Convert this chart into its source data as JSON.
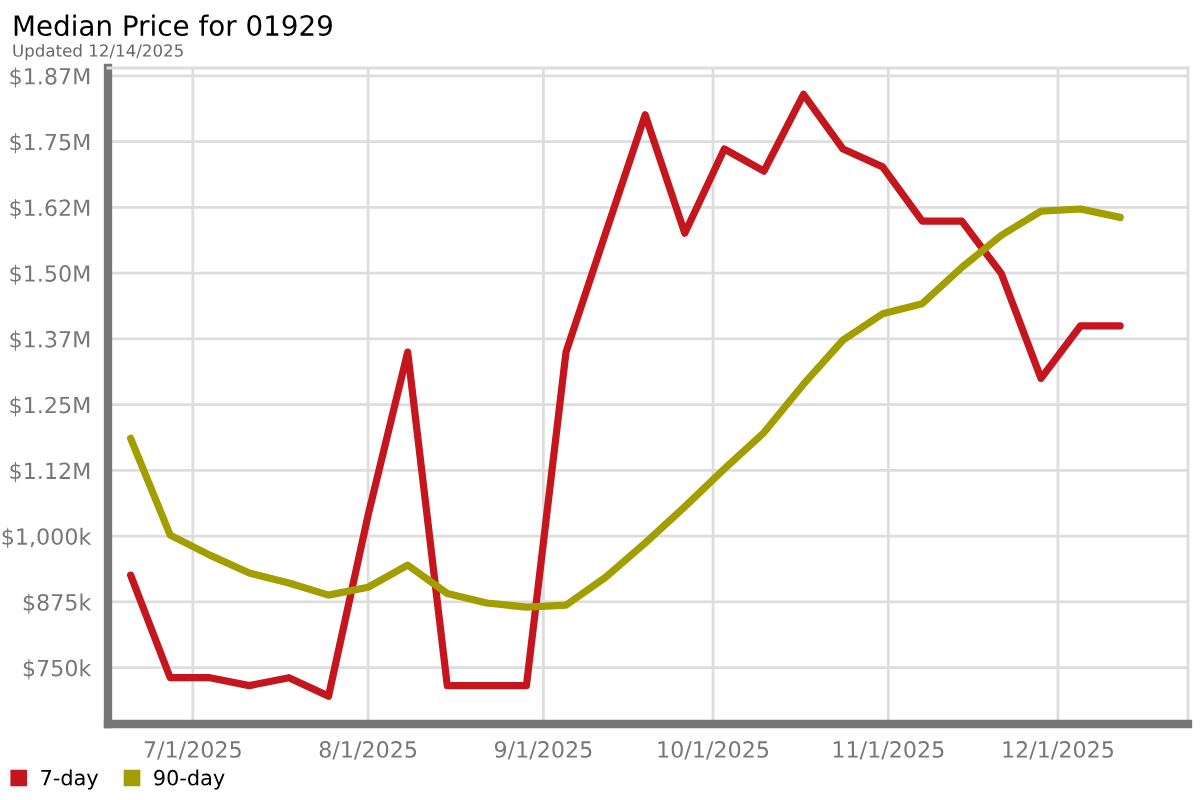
{
  "chart_data": {
    "type": "line",
    "title": "Median Price for 01929",
    "subtitle": "Updated 12/14/2025",
    "x": [
      "2025-06-20",
      "2025-06-27",
      "2025-07-04",
      "2025-07-11",
      "2025-07-18",
      "2025-07-25",
      "2025-08-01",
      "2025-08-08",
      "2025-08-15",
      "2025-08-22",
      "2025-08-29",
      "2025-09-05",
      "2025-09-12",
      "2025-09-19",
      "2025-09-26",
      "2025-10-03",
      "2025-10-10",
      "2025-10-17",
      "2025-10-24",
      "2025-10-31",
      "2025-11-07",
      "2025-11-14",
      "2025-11-21",
      "2025-11-28",
      "2025-12-05",
      "2025-12-12"
    ],
    "series": [
      {
        "name": "7-day",
        "color": "#c4161c",
        "values": [
          926000,
          731000,
          731000,
          716000,
          731000,
          696000,
          1040000,
          1350000,
          716000,
          716000,
          716000,
          1350000,
          1576000,
          1801000,
          1576000,
          1736000,
          1694000,
          1840000,
          1736000,
          1702000,
          1599000,
          1599000,
          1499000,
          1300000,
          1400000,
          1400000
        ]
      },
      {
        "name": "90-day",
        "color": "#a39e00",
        "values": [
          1186000,
          1002000,
          964000,
          930000,
          911000,
          888000,
          903000,
          945000,
          891000,
          873000,
          865000,
          869000,
          922000,
          987000,
          1056000,
          1128000,
          1197000,
          1289000,
          1373000,
          1423000,
          1442000,
          1511000,
          1572000,
          1618000,
          1622000,
          1606000
        ]
      }
    ],
    "xlim": [
      "2025-06-16",
      "2025-12-24"
    ],
    "xticks": [
      {
        "value": "2025-07-01",
        "label": "7/1/2025"
      },
      {
        "value": "2025-08-01",
        "label": "8/1/2025"
      },
      {
        "value": "2025-09-01",
        "label": "9/1/2025"
      },
      {
        "value": "2025-10-01",
        "label": "10/1/2025"
      },
      {
        "value": "2025-11-01",
        "label": "11/1/2025"
      },
      {
        "value": "2025-12-01",
        "label": "12/1/2025"
      }
    ],
    "ylim": [
      643000,
      1890000
    ],
    "yticks": [
      {
        "value": 750000,
        "label": "$750k"
      },
      {
        "value": 875000,
        "label": "$875k"
      },
      {
        "value": 1000000,
        "label": "$1,000k"
      },
      {
        "value": 1125000,
        "label": "$1.12M"
      },
      {
        "value": 1250000,
        "label": "$1.25M"
      },
      {
        "value": 1375000,
        "label": "$1.37M"
      },
      {
        "value": 1500000,
        "label": "$1.50M"
      },
      {
        "value": 1625000,
        "label": "$1.62M"
      },
      {
        "value": 1750000,
        "label": "$1.75M"
      },
      {
        "value": 1875000,
        "label": "$1.87M"
      }
    ],
    "grid": true,
    "legend": "bottom left",
    "marker": "none",
    "line_style": "solid"
  }
}
